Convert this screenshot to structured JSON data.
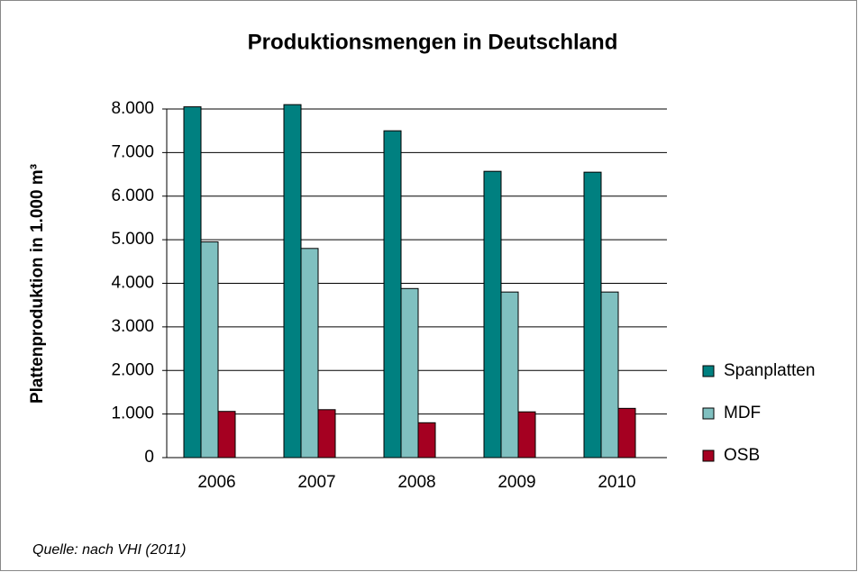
{
  "chart_data": {
    "type": "bar",
    "title": "Produktionsmengen in Deutschland",
    "y_label": "Plattenproduktion in 1.000 m³",
    "source": "Quelle: nach VHI (2011)",
    "categories": [
      "2006",
      "2007",
      "2008",
      "2009",
      "2010"
    ],
    "series": [
      {
        "name": "Spanplatten",
        "color": "#008080",
        "values": [
          8050,
          8100,
          7500,
          6570,
          6550
        ]
      },
      {
        "name": "MDF",
        "color": "#80c0c0",
        "values": [
          4950,
          4800,
          3880,
          3800,
          3800
        ]
      },
      {
        "name": "OSB",
        "color": "#a50021",
        "values": [
          1060,
          1100,
          800,
          1050,
          1130
        ]
      }
    ],
    "ylim": [
      0,
      8000
    ],
    "yticks": [
      0,
      {
        "value": 1000,
        "label": "1.000"
      },
      {
        "value": 2000,
        "label": "2.000"
      },
      {
        "value": 3000,
        "label": "3.000"
      },
      {
        "value": 4000,
        "label": "4.000"
      },
      {
        "value": 5000,
        "label": "5.000"
      },
      {
        "value": 6000,
        "label": "6.000"
      },
      {
        "value": 7000,
        "label": "7.000"
      },
      {
        "value": 8000,
        "label": "8.000"
      }
    ],
    "grid": true,
    "legend": "right"
  }
}
